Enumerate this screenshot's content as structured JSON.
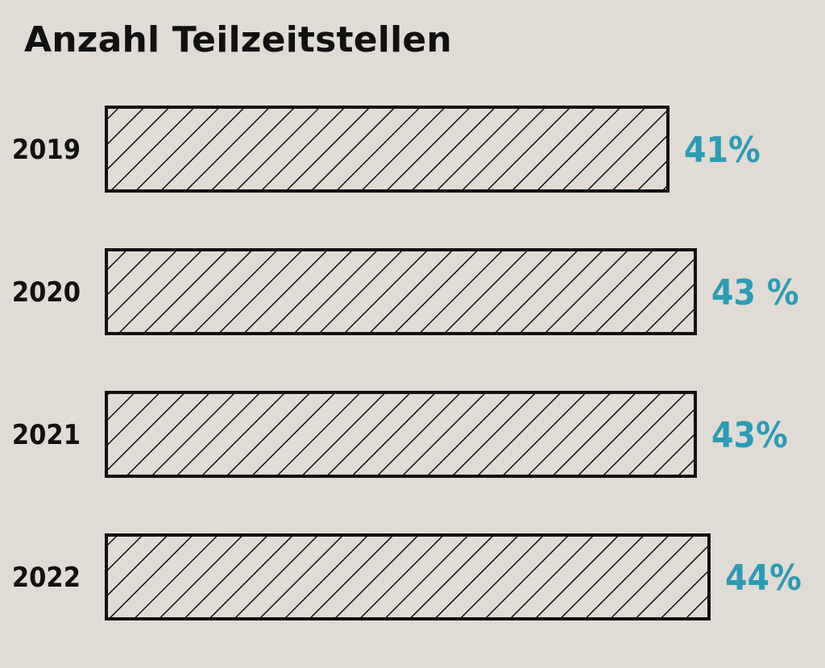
{
  "chart_data": {
    "type": "bar",
    "orientation": "horizontal",
    "title": "Anzahl Teilzeitstellen",
    "categories": [
      "2019",
      "2020",
      "2021",
      "2022"
    ],
    "values": [
      41,
      43,
      43,
      44
    ],
    "value_labels": [
      "41%",
      "43 %",
      "43%",
      "44%"
    ],
    "unit": "%",
    "xlim": [
      0,
      44
    ],
    "grid": false,
    "legend": "none",
    "bar_fill": "diagonal-hatch",
    "colors": {
      "background": "#e0dbd4",
      "bar_outline": "#111111",
      "hatch": "#111111",
      "value_label": "#2a9cb4",
      "text": "#111111"
    }
  }
}
